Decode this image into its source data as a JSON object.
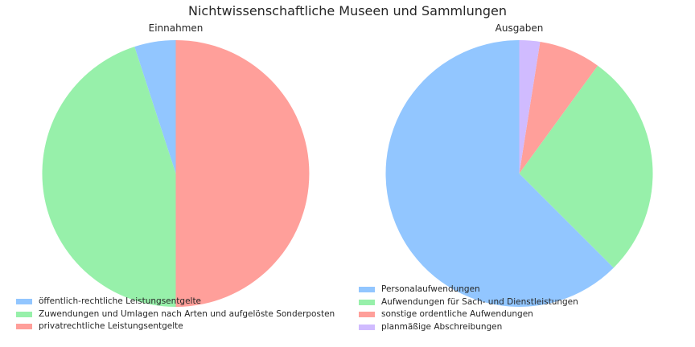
{
  "title": "Nichtwissenschaftliche Museen und Sammlungen",
  "chart_data": [
    {
      "type": "pie",
      "title": "Einnahmen",
      "categories": [
        "öffentlich-rechtliche Leistungsentgelte",
        "Zuwendungen und Umlagen nach Arten und aufgelöste Sonderposten",
        "privatrechtliche Leistungsentgelte"
      ],
      "values": [
        5.0,
        45.0,
        50.0
      ],
      "colors": [
        "#92c6ff",
        "#97f0aa",
        "#ff9f9a"
      ],
      "legend": "bottom-left"
    },
    {
      "type": "pie",
      "title": "Ausgaben",
      "categories": [
        "Personalaufwendungen",
        "Aufwendungen für Sach- und Dienstleistungen",
        "sonstige ordentliche Aufwendungen",
        "planmäßige Abschreibungen"
      ],
      "values": [
        62.5,
        27.5,
        7.5,
        2.5
      ],
      "colors": [
        "#92c6ff",
        "#97f0aa",
        "#ff9f9a",
        "#d0bbff"
      ],
      "legend": "bottom-left"
    }
  ]
}
